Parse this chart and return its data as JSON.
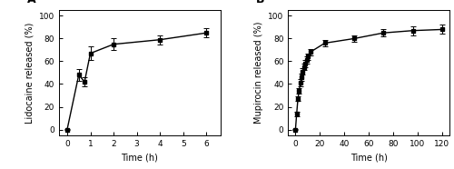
{
  "panel_A": {
    "x": [
      0,
      0.5,
      0.75,
      1,
      2,
      4,
      6
    ],
    "y": [
      0,
      48,
      42,
      67,
      75,
      79,
      85
    ],
    "yerr": [
      0.5,
      5,
      4,
      6,
      5,
      4,
      4
    ],
    "xlabel": "Time (h)",
    "ylabel": "Lidocaine released (%)",
    "xlim": [
      -0.35,
      6.6
    ],
    "ylim": [
      -5,
      105
    ],
    "xticks": [
      0,
      1,
      2,
      3,
      4,
      5,
      6
    ],
    "yticks": [
      0,
      20,
      40,
      60,
      80,
      100
    ],
    "label": "A"
  },
  "panel_B": {
    "x": [
      0,
      1,
      2,
      3,
      4,
      5,
      6,
      7,
      8,
      9,
      10,
      12,
      24,
      48,
      72,
      96,
      120
    ],
    "y": [
      0,
      14,
      27,
      34,
      41,
      46,
      51,
      55,
      58,
      61,
      64,
      68,
      76,
      80,
      85,
      87,
      88
    ],
    "yerr": [
      0.5,
      2,
      2,
      2,
      3,
      3,
      3,
      3,
      3,
      3,
      3,
      3,
      3,
      3,
      3,
      4,
      4
    ],
    "xlabel": "Time (h)",
    "ylabel": "Mupirocin released (%)",
    "xlim": [
      -6,
      126
    ],
    "ylim": [
      -5,
      105
    ],
    "xticks": [
      0,
      20,
      40,
      60,
      80,
      100,
      120
    ],
    "yticks": [
      0,
      20,
      40,
      60,
      80,
      100
    ],
    "label": "B"
  },
  "line_color": "#000000",
  "marker": "s",
  "markersize": 3,
  "capsize": 2.5,
  "linewidth": 1.0,
  "fontsize_label": 7,
  "fontsize_tick": 6.5,
  "fontsize_panel_label": 9,
  "background_color": "#ffffff"
}
